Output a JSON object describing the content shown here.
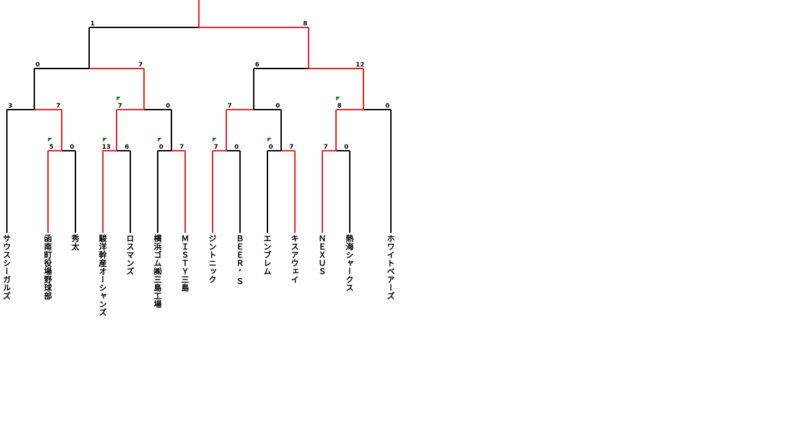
{
  "teams": [
    "サウスシーガルズ",
    "函南町役場野球部",
    "秀太",
    "駿洋幹産オーシャンズ",
    "ロスマンズ",
    "横浜ゴム㈱三島工場",
    "ＭＩＳＴＹ三島",
    "ジントニック",
    "ＢＥＥＲ’Ｓ",
    "エンブレム",
    "キスアウェイ",
    "ＮＥＸＵＳ",
    "熱海シャークス",
    "ホワイトベアーズ"
  ],
  "colors": {
    "winner_line": "#e02020",
    "loser_line": "#000000",
    "marker": "#1a7f1a"
  },
  "matches": [
    {
      "id": "r1a",
      "left_score": "5",
      "right_score": "0",
      "winner": "left",
      "marker": true
    },
    {
      "id": "r1b",
      "left_score": "13",
      "right_score": "6",
      "winner": "left",
      "marker": true
    },
    {
      "id": "r1c",
      "left_score": "0",
      "right_score": "7",
      "winner": "right",
      "marker": true
    },
    {
      "id": "r1d",
      "left_score": "7",
      "right_score": "0",
      "winner": "left",
      "marker": true
    },
    {
      "id": "r1e",
      "left_score": "0",
      "right_score": "7",
      "winner": "right",
      "marker": true
    },
    {
      "id": "r1f",
      "left_score": "7",
      "right_score": "0",
      "winner": "left",
      "marker": false
    },
    {
      "id": "r2a",
      "left_score": "3",
      "right_score": "7",
      "winner": "right",
      "marker": false
    },
    {
      "id": "r2b",
      "left_score": "7",
      "right_score": "0",
      "winner": "left",
      "marker": true
    },
    {
      "id": "r2c",
      "left_score": "7",
      "right_score": "0",
      "winner": "left",
      "marker": false
    },
    {
      "id": "r2d",
      "left_score": "8",
      "right_score": "0",
      "winner": "left",
      "marker": true
    },
    {
      "id": "sfa",
      "left_score": "0",
      "right_score": "7",
      "winner": "right",
      "marker": false
    },
    {
      "id": "sfb",
      "left_score": "6",
      "right_score": "12",
      "winner": "right",
      "marker": false
    },
    {
      "id": "final",
      "left_score": "1",
      "right_score": "8",
      "winner": "right",
      "marker": false
    }
  ]
}
